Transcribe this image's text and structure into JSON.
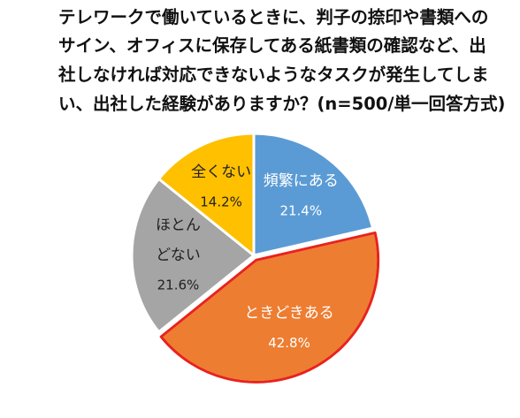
{
  "title_lines": [
    "テレワークで働いているときに、判子の捺印や書類への",
    "サイン、オフィスに保存してある紙書類の確認など、出",
    "社しなければ対応できないようなタスクが発生してしま",
    "い、出社した経験がありますか？(n=500/単一回答方式)"
  ],
  "chart_data": {
    "type": "pie",
    "title": "テレワークで働いているときに、判子の捺印や書類へのサイン、オフィスに保存してある紙書類の確認など、出社しなければ対応できないようなタスクが発生してしまい、出社した経験がありますか？(n=500/単一回答方式)",
    "slices": [
      {
        "label_lines": [
          "頻繁にある"
        ],
        "value": 21.4,
        "display": "21.4%",
        "color": "#5B9BD5",
        "text_color": "#ffffff"
      },
      {
        "label_lines": [
          "ときどきある"
        ],
        "value": 42.8,
        "display": "42.8%",
        "color": "#ED7D31",
        "text_color": "#ffffff",
        "highlight": true
      },
      {
        "label_lines": [
          "ほとん",
          "どない"
        ],
        "value": 21.6,
        "display": "21.6%",
        "color": "#A5A5A5",
        "text_color": "#222222"
      },
      {
        "label_lines": [
          "全くない"
        ],
        "value": 14.2,
        "display": "14.2%",
        "color": "#FFC000",
        "text_color": "#222222"
      }
    ],
    "start_angle_deg": 0,
    "direction": "clockwise",
    "highlight_color": "#E8231B",
    "legend": "none"
  }
}
